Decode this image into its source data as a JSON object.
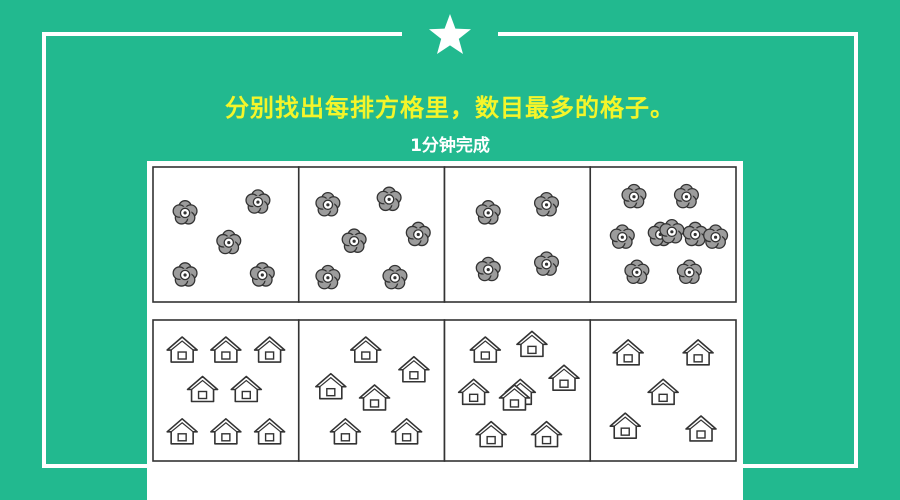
{
  "header": {
    "title": "分别找出每排方格里，数目最多的格子。",
    "subtitle": "1分钟完成",
    "star_icon": "star-icon"
  },
  "colors": {
    "background": "#22b98f",
    "frame": "#ffffff",
    "title": "#f4f52a",
    "subtitle": "#ffffff",
    "sheet": "#ffffff",
    "ink": "#333333",
    "flower_fill": "#9c9c9c"
  },
  "puzzle": {
    "rows": [
      {
        "item_icon": "flower-icon",
        "cells": [
          {
            "count": 5,
            "items": [
              [
                0.22,
                0.34
              ],
              [
                0.72,
                0.26
              ],
              [
                0.52,
                0.56
              ],
              [
                0.22,
                0.8
              ],
              [
                0.75,
                0.8
              ]
            ]
          },
          {
            "count": 6,
            "items": [
              [
                0.2,
                0.28
              ],
              [
                0.62,
                0.24
              ],
              [
                0.38,
                0.55
              ],
              [
                0.82,
                0.5
              ],
              [
                0.2,
                0.82
              ],
              [
                0.66,
                0.82
              ]
            ]
          },
          {
            "count": 4,
            "items": [
              [
                0.3,
                0.34
              ],
              [
                0.7,
                0.28
              ],
              [
                0.3,
                0.76
              ],
              [
                0.7,
                0.72
              ]
            ]
          },
          {
            "count": 9,
            "items": [
              [
                0.3,
                0.22
              ],
              [
                0.66,
                0.22
              ],
              [
                0.22,
                0.52
              ],
              [
                0.48,
                0.5
              ],
              [
                0.72,
                0.5
              ],
              [
                0.86,
                0.52
              ],
              [
                0.32,
                0.78
              ],
              [
                0.68,
                0.78
              ],
              [
                0.56,
                0.48
              ]
            ]
          }
        ]
      },
      {
        "item_icon": "house-icon",
        "cells": [
          {
            "count": 8,
            "items": [
              [
                0.2,
                0.22
              ],
              [
                0.5,
                0.22
              ],
              [
                0.8,
                0.22
              ],
              [
                0.34,
                0.5
              ],
              [
                0.64,
                0.5
              ],
              [
                0.2,
                0.8
              ],
              [
                0.5,
                0.8
              ],
              [
                0.8,
                0.8
              ]
            ]
          },
          {
            "count": 6,
            "items": [
              [
                0.46,
                0.22
              ],
              [
                0.79,
                0.36
              ],
              [
                0.22,
                0.48
              ],
              [
                0.52,
                0.56
              ],
              [
                0.32,
                0.8
              ],
              [
                0.74,
                0.8
              ]
            ]
          },
          {
            "count": 8,
            "items": [
              [
                0.28,
                0.22
              ],
              [
                0.6,
                0.18
              ],
              [
                0.82,
                0.42
              ],
              [
                0.2,
                0.52
              ],
              [
                0.52,
                0.52
              ],
              [
                0.32,
                0.82
              ],
              [
                0.7,
                0.82
              ],
              [
                0.48,
                0.56
              ]
            ]
          },
          {
            "count": 5,
            "items": [
              [
                0.26,
                0.24
              ],
              [
                0.74,
                0.24
              ],
              [
                0.5,
                0.52
              ],
              [
                0.24,
                0.76
              ],
              [
                0.76,
                0.78
              ]
            ]
          }
        ]
      }
    ]
  }
}
